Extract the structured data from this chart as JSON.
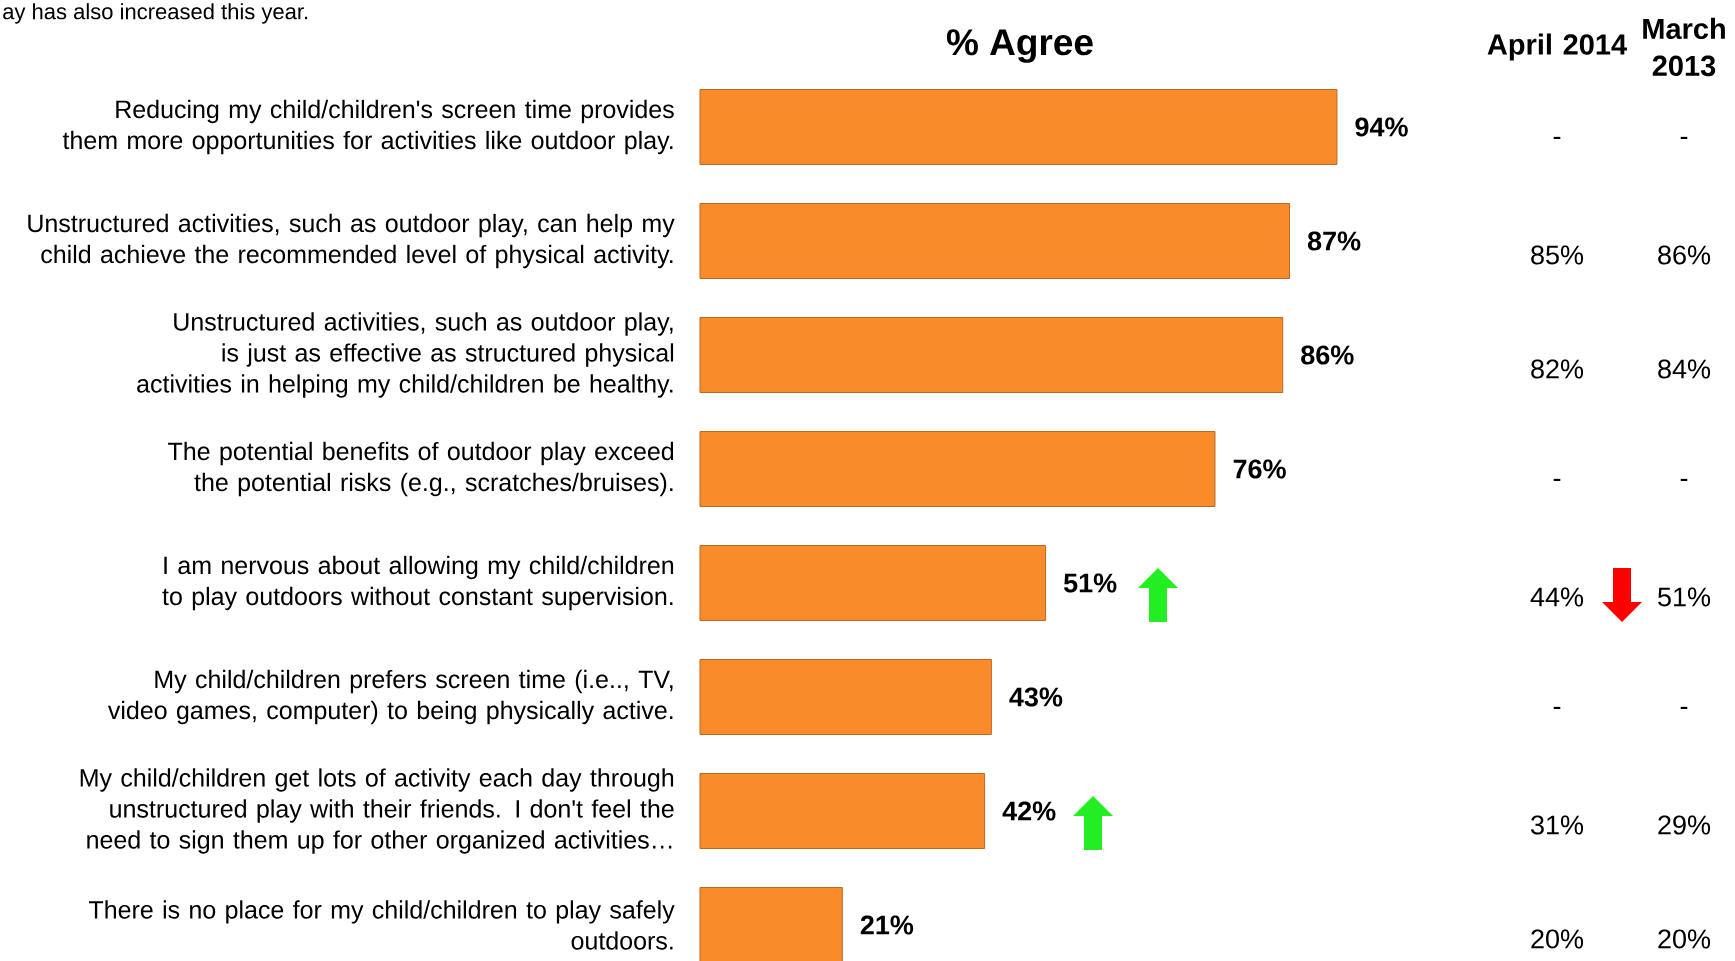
{
  "chart_data": {
    "type": "bar",
    "orientation": "horizontal",
    "title": "% Agree",
    "tick_labels": "y",
    "color": "#f98b2b",
    "categories": [
      "Reducing my child/children's screen time provides them more opportunities for activities like outdoor play.",
      "Unstructured activities, such as outdoor play, can help my child achieve the recommended level of physical activity.",
      "Unstructured activities, such as outdoor play, is just as effective as structured physical activities in helping my child/children be healthy.",
      "The potential benefits of outdoor play exceed the potential risks (e.g., scratches/bruises).",
      "I am nervous about allowing my child/children to play outdoors without constant supervision.",
      "My child/children prefers screen time (i.e.., TV, video games, computer) to being physically active.",
      "My child/children get lots of activity each day through unstructured play with their friends.  I don't feel the need to sign them up for other organized activities…",
      "There is no place for my child/children to play safely outdoors."
    ],
    "values": [
      94,
      87,
      86,
      76,
      51,
      43,
      42,
      21
    ],
    "value_labels": [
      "94%",
      "87%",
      "86%",
      "76%",
      "51%",
      "43%",
      "42%",
      "21%"
    ],
    "annotations": [
      "ay has also increased this year.",
      "April 2014",
      "March 2013",
      "-",
      "-",
      "85%",
      "86%",
      "82%",
      "84%",
      "-",
      "-",
      "44%",
      "51%",
      "-",
      "-",
      "31%",
      "29%",
      "20%",
      "20%"
    ]
  }
}
